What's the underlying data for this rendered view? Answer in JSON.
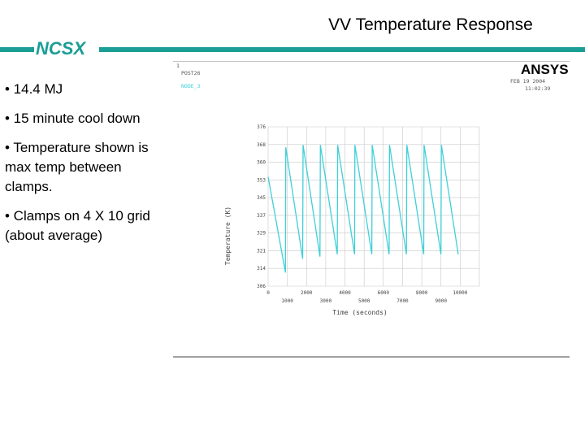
{
  "slide": {
    "title": "VV Temperature Response",
    "logo": "NCSX",
    "bullets": [
      "• 14.4 MJ",
      "• 15 minute cool down",
      "• Temperature shown is max temp between clamps.",
      "• Clamps on 4 X 10 grid (about average)"
    ]
  },
  "ansys_panel": {
    "logo": "ANSYS",
    "corner_lines": [
      "1",
      "POST26",
      "NODE_3"
    ],
    "header_lines": [
      "FEB 19 2004",
      "11:02:39"
    ]
  },
  "colors": {
    "accent": "#1a9e96",
    "series": "#3fd0d8",
    "grid": "#c8c8c8"
  },
  "chart_data": {
    "type": "line",
    "xlabel": "Time (seconds)",
    "ylabel": "Temperature (K)",
    "xlim": [
      0,
      11000
    ],
    "ylim": [
      306,
      376
    ],
    "x_ticks_upper": [
      "0",
      "2000",
      "4000",
      "6000",
      "8000",
      "10000"
    ],
    "x_ticks_lower": [
      "1000",
      "3000",
      "5000",
      "7000",
      "9000"
    ],
    "y_ticks": [
      "306",
      "314",
      "321",
      "329",
      "337",
      "345",
      "353",
      "360",
      "368",
      "376"
    ],
    "grid": true,
    "series": [
      {
        "x": [
          0,
          900,
          920,
          1800,
          1820,
          2700,
          2720,
          3600,
          3620,
          4500,
          4520,
          5400,
          5420,
          6300,
          6320,
          7200,
          7220,
          8100,
          8120,
          9000,
          9020,
          9900
        ],
        "y": [
          354,
          312,
          367,
          318,
          368,
          319,
          368,
          320,
          368,
          320,
          368,
          320,
          368,
          320,
          368,
          320,
          368,
          320,
          368,
          320,
          368,
          320
        ]
      }
    ]
  }
}
